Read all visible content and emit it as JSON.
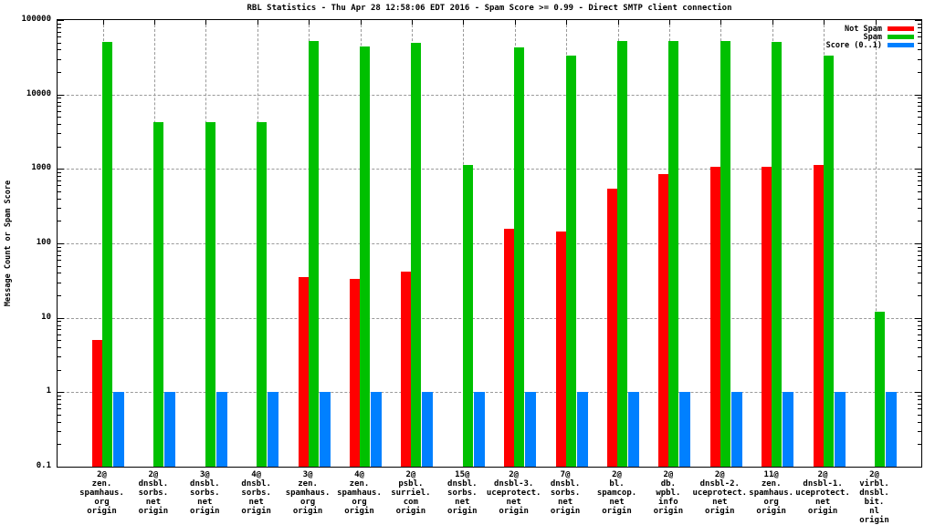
{
  "chart_data": {
    "type": "bar",
    "scale": "log",
    "title": "RBL Statistics - Thu Apr 28 12:58:06 EDT 2016 - Spam Score >= 0.99 - Direct SMTP client connection",
    "xlabel": "",
    "ylabel": "Message Count or Spam Score",
    "ylim": [
      0.1,
      100000
    ],
    "ytick_labels": [
      "0.1",
      "1",
      "10",
      "100",
      "1000",
      "10000",
      "100000"
    ],
    "grid": true,
    "legend_position": "top-right",
    "legend": [
      {
        "name": "Not Spam",
        "color": "#ff0000"
      },
      {
        "name": "Spam",
        "color": "#00c000"
      },
      {
        "name": "Score (0..1)",
        "color": "#0080ff"
      }
    ],
    "categories": [
      [
        "2@",
        "zen.",
        "spamhaus.",
        "org",
        "origin"
      ],
      [
        "2@",
        "dnsbl.",
        "sorbs.",
        "net",
        "origin"
      ],
      [
        "3@",
        "dnsbl.",
        "sorbs.",
        "net",
        "origin"
      ],
      [
        "4@",
        "dnsbl.",
        "sorbs.",
        "net",
        "origin"
      ],
      [
        "3@",
        "zen.",
        "spamhaus.",
        "org",
        "origin"
      ],
      [
        "4@",
        "zen.",
        "spamhaus.",
        "org",
        "origin"
      ],
      [
        "2@",
        "psbl.",
        "surriel.",
        "com",
        "origin"
      ],
      [
        "15@",
        "dnsbl.",
        "sorbs.",
        "net",
        "origin"
      ],
      [
        "2@",
        "dnsbl-3.",
        "uceprotect.",
        "net",
        "origin"
      ],
      [
        "7@",
        "dnsbl.",
        "sorbs.",
        "net",
        "origin"
      ],
      [
        "2@",
        "bl.",
        "spamcop.",
        "net",
        "origin"
      ],
      [
        "2@",
        "db.",
        "wpbl.",
        "info",
        "origin"
      ],
      [
        "2@",
        "dnsbl-2.",
        "uceprotect.",
        "net",
        "origin"
      ],
      [
        "11@",
        "zen.",
        "spamhaus.",
        "org",
        "origin"
      ],
      [
        "2@",
        "dnsbl-1.",
        "uceprotect.",
        "net",
        "origin"
      ],
      [
        "2@",
        "virbl.",
        "dnsbl.",
        "bit.",
        "nl",
        "origin"
      ]
    ],
    "series": [
      {
        "name": "Not Spam",
        "color": "#ff0000",
        "values": [
          5,
          0,
          0,
          0,
          35,
          33,
          42,
          0,
          155,
          145,
          545,
          850,
          1070,
          1060,
          1130,
          0
        ]
      },
      {
        "name": "Spam",
        "color": "#00c000",
        "values": [
          51000,
          4300,
          4300,
          4300,
          53000,
          44000,
          50000,
          1120,
          43000,
          33000,
          52000,
          52000,
          53000,
          51000,
          33000,
          12
        ]
      },
      {
        "name": "Score (0..1)",
        "color": "#0080ff",
        "values": [
          1,
          1,
          1,
          1,
          1,
          1,
          1,
          1,
          1,
          1,
          1,
          1,
          1,
          1,
          1,
          1
        ]
      }
    ]
  }
}
